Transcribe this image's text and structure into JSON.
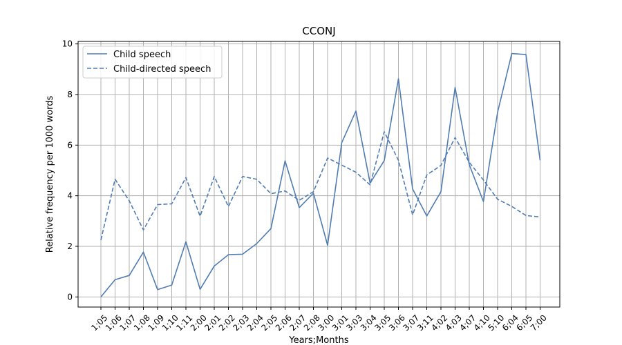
{
  "chart_data": {
    "type": "line",
    "title": "CCONJ",
    "xlabel": "Years;Months",
    "ylabel": "Relative frequency per 1000 words",
    "ylim": [
      -0.4,
      10.1
    ],
    "yticks": [
      0,
      2,
      4,
      6,
      8,
      10
    ],
    "grid": true,
    "legend_position": "top-left",
    "categories": [
      "1;05",
      "1;06",
      "1;07",
      "1;08",
      "1;09",
      "1;10",
      "1;11",
      "2;00",
      "2;01",
      "2;02",
      "2;03",
      "2;04",
      "2;05",
      "2;06",
      "2;07",
      "2;08",
      "3;00",
      "3;01",
      "3;03",
      "3;04",
      "3;05",
      "3;06",
      "3;07",
      "3;11",
      "4;02",
      "4;03",
      "4;07",
      "4;10",
      "5;10",
      "6;04",
      "6;05",
      "7;00"
    ],
    "series": [
      {
        "name": "Child speech",
        "style": "solid",
        "color": "#4f7cb3",
        "values": [
          0.0,
          0.68,
          0.85,
          1.77,
          0.29,
          0.47,
          2.18,
          0.3,
          1.22,
          1.67,
          1.69,
          2.11,
          2.7,
          5.38,
          3.53,
          4.1,
          2.04,
          6.1,
          7.35,
          4.5,
          5.39,
          8.62,
          4.27,
          3.2,
          4.16,
          8.28,
          5.23,
          3.77,
          7.3,
          9.62,
          9.58,
          5.4
        ]
      },
      {
        "name": "Child-directed speech",
        "style": "dashed",
        "color": "#4f7cb3",
        "values": [
          2.25,
          4.65,
          3.8,
          2.65,
          3.65,
          3.68,
          4.72,
          3.19,
          4.76,
          3.57,
          4.76,
          4.65,
          4.08,
          4.19,
          3.82,
          4.16,
          5.49,
          5.21,
          4.93,
          4.43,
          6.53,
          5.4,
          3.24,
          4.82,
          5.2,
          6.3,
          5.32,
          4.62,
          3.86,
          3.58,
          3.22,
          3.16
        ]
      }
    ]
  }
}
